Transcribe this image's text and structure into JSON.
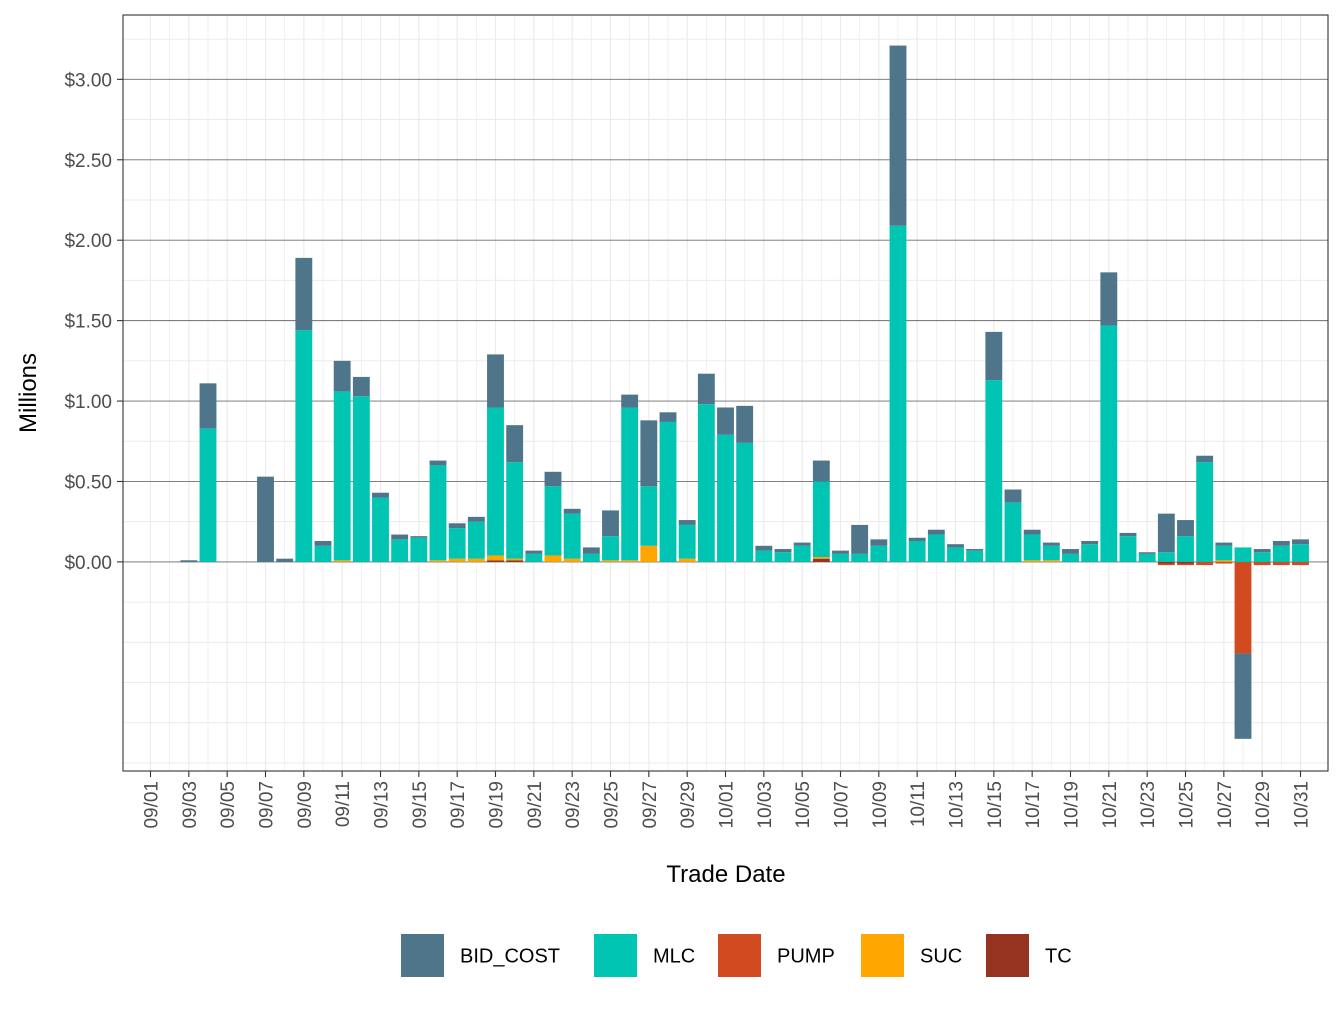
{
  "chart_data": {
    "type": "bar",
    "stacked": true,
    "title": "",
    "xlabel": "Trade Date",
    "ylabel": "Millions",
    "ylim": [
      -1.3,
      3.4
    ],
    "y_ticks": [
      0,
      0.5,
      1.0,
      1.5,
      2.0,
      2.5,
      3.0
    ],
    "y_tick_labels": [
      "$0.00",
      "$0.50",
      "$1.00",
      "$1.50",
      "$2.00",
      "$2.50",
      "$3.00"
    ],
    "grid": true,
    "legend_position": "bottom",
    "categories": [
      "09/01",
      "09/02",
      "09/03",
      "09/04",
      "09/05",
      "09/06",
      "09/07",
      "09/08",
      "09/09",
      "09/10",
      "09/11",
      "09/12",
      "09/13",
      "09/14",
      "09/15",
      "09/16",
      "09/17",
      "09/18",
      "09/19",
      "09/20",
      "09/21",
      "09/22",
      "09/23",
      "09/24",
      "09/25",
      "09/26",
      "09/27",
      "09/28",
      "09/29",
      "09/30",
      "10/01",
      "10/02",
      "10/03",
      "10/04",
      "10/05",
      "10/06",
      "10/07",
      "10/08",
      "10/09",
      "10/10",
      "10/11",
      "10/12",
      "10/13",
      "10/14",
      "10/15",
      "10/16",
      "10/17",
      "10/18",
      "10/19",
      "10/20",
      "10/21",
      "10/22",
      "10/23",
      "10/24",
      "10/25",
      "10/26",
      "10/27",
      "10/28",
      "10/29",
      "10/30",
      "10/31"
    ],
    "x_tick_labels": [
      "09/01",
      "09/03",
      "09/05",
      "09/07",
      "09/09",
      "09/11",
      "09/13",
      "09/15",
      "09/17",
      "09/19",
      "09/21",
      "09/23",
      "09/25",
      "09/27",
      "09/29",
      "10/01",
      "10/03",
      "10/05",
      "10/07",
      "10/09",
      "10/11",
      "10/13",
      "10/15",
      "10/17",
      "10/19",
      "10/21",
      "10/23",
      "10/25",
      "10/27",
      "10/29",
      "10/31"
    ],
    "series": [
      {
        "name": "BID_COST",
        "color": "#4E7589",
        "values": [
          0,
          0,
          0.01,
          0.28,
          0,
          0,
          0.53,
          0.02,
          0.45,
          0.03,
          0.19,
          0.12,
          0.03,
          0.03,
          0.01,
          0.03,
          0.03,
          0.03,
          0.33,
          0.23,
          0.02,
          0.09,
          0.03,
          0.04,
          0.16,
          0.08,
          0.41,
          0.06,
          0.03,
          0.19,
          0.17,
          0.23,
          0.03,
          0.02,
          0.02,
          0.13,
          0.02,
          0.18,
          0.04,
          1.12,
          0.02,
          0.03,
          0.02,
          0.01,
          0.3,
          0.08,
          0.03,
          0.02,
          0.03,
          0.02,
          0.33,
          0.02,
          0.01,
          0.24,
          0.1,
          0.04,
          0.02,
          -0.53,
          0.02,
          0.03,
          0.03
        ]
      },
      {
        "name": "MLC",
        "color": "#00C5B2",
        "values": [
          0,
          0,
          0,
          0.83,
          0,
          0,
          0,
          0,
          1.44,
          0.1,
          1.05,
          1.03,
          0.4,
          0.14,
          0.15,
          0.59,
          0.19,
          0.23,
          0.92,
          0.6,
          0.05,
          0.43,
          0.28,
          0.05,
          0.15,
          0.95,
          0.37,
          0.87,
          0.21,
          0.98,
          0.79,
          0.74,
          0.07,
          0.06,
          0.1,
          0.47,
          0.05,
          0.05,
          0.1,
          2.09,
          0.13,
          0.17,
          0.09,
          0.07,
          1.13,
          0.37,
          0.16,
          0.09,
          0.05,
          0.11,
          1.47,
          0.16,
          0.05,
          0.06,
          0.16,
          0.62,
          0.09,
          0.09,
          0.06,
          0.1,
          0.11
        ]
      },
      {
        "name": "PUMP",
        "color": "#D14A20",
        "values": [
          0,
          0,
          0,
          0,
          0,
          0,
          0,
          0,
          0,
          0,
          0,
          0,
          0,
          0,
          0,
          0,
          0,
          0,
          0,
          0,
          0,
          0,
          0,
          0,
          0,
          0,
          0,
          0,
          0,
          0,
          0,
          0,
          0,
          0,
          0,
          0,
          0,
          0,
          0,
          0,
          0,
          0,
          0,
          0,
          0,
          0,
          0,
          0,
          0,
          0,
          0,
          0,
          0,
          -0.01,
          -0.01,
          -0.02,
          -0.01,
          -0.57,
          -0.02,
          -0.02,
          -0.02
        ]
      },
      {
        "name": "SUC",
        "color": "#FFA600",
        "values": [
          0,
          0,
          0,
          0,
          0,
          0,
          0,
          0,
          0,
          0,
          0.01,
          0,
          0,
          0,
          0,
          0.01,
          0.02,
          0.02,
          0.03,
          0.01,
          0,
          0.04,
          0.02,
          0,
          0.01,
          0.01,
          0.1,
          0,
          0.02,
          0,
          0,
          0,
          0,
          0,
          0,
          0.01,
          0,
          0,
          0,
          0,
          0,
          0,
          0,
          0,
          0,
          0,
          0.01,
          0.01,
          0,
          0,
          0,
          0,
          0,
          0,
          0,
          0,
          0.01,
          0,
          0,
          0,
          0
        ]
      },
      {
        "name": "TC",
        "color": "#953320",
        "values": [
          0,
          0,
          0,
          0,
          0,
          0,
          0,
          0,
          0,
          0,
          0,
          0,
          0,
          0,
          0,
          0,
          0,
          0,
          0.01,
          0.01,
          0,
          0,
          0,
          0,
          0,
          0,
          0,
          0,
          0,
          0,
          0,
          0,
          0,
          0,
          0,
          0.02,
          0,
          0,
          0,
          0,
          0,
          0,
          0,
          0,
          0,
          0,
          0,
          0,
          0,
          0,
          0,
          0,
          0,
          -0.01,
          -0.01,
          0,
          0,
          0,
          0,
          0,
          0
        ]
      }
    ]
  }
}
